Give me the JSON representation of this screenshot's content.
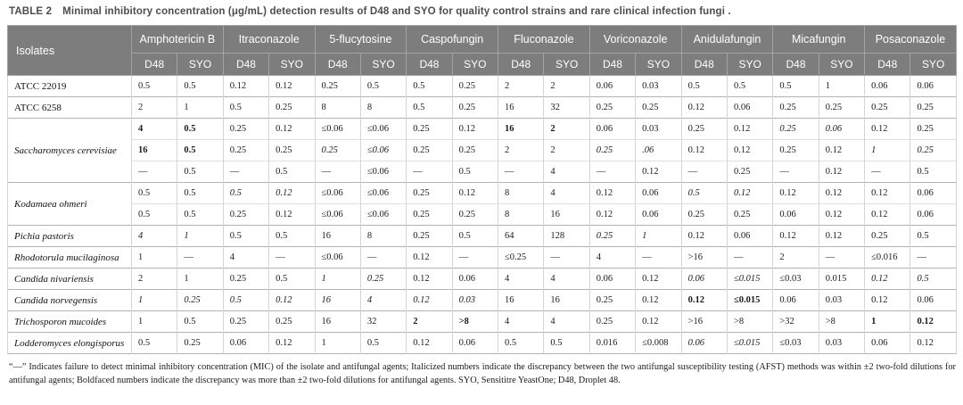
{
  "title": {
    "label": "TABLE 2",
    "text": "Minimal inhibitory concentration (μg/mL) detection results of D48 and SYO for quality control strains and rare clinical infection fungi ."
  },
  "table": {
    "isolates_header": "Isolates",
    "subcolumns": [
      "D48",
      "SYO"
    ],
    "drugs": [
      "Amphotericin B",
      "Itraconazole",
      "5-flucytosine",
      "Caspofungin",
      "Fluconazole",
      "Voriconazole",
      "Anidulafungin",
      "Micafungin",
      "Posaconazole"
    ],
    "groups": [
      {
        "isolate": "ATCC 22019",
        "italic": false,
        "rows": [
          {
            "values": [
              "0.5",
              "0.5",
              "0.12",
              "0.12",
              "0.25",
              "0.5",
              "0.5",
              "0.25",
              "2",
              "2",
              "0.06",
              "0.03",
              "0.5",
              "0.5",
              "0.5",
              "1",
              "0.06",
              "0.06"
            ],
            "styles": ".................."
          }
        ]
      },
      {
        "isolate": "ATCC 6258",
        "italic": false,
        "rows": [
          {
            "values": [
              "2",
              "1",
              "0.5",
              "0.25",
              "8",
              "8",
              "0.5",
              "0.25",
              "16",
              "32",
              "0.25",
              "0.25",
              "0.12",
              "0.06",
              "0.25",
              "0.25",
              "0.25",
              "0.25"
            ],
            "styles": ".................."
          }
        ]
      },
      {
        "isolate": "Saccharomyces cerevisiae",
        "italic": true,
        "rows": [
          {
            "values": [
              "4",
              "0.5",
              "0.25",
              "0.12",
              "≤0.06",
              "≤0.06",
              "0.25",
              "0.12",
              "16",
              "2",
              "0.06",
              "0.03",
              "0.25",
              "0.12",
              "0.25",
              "0.06",
              "0.12",
              "0.25"
            ],
            "styles": "bb......bb....ii.."
          },
          {
            "values": [
              "16",
              "0.5",
              "0.25",
              "0.25",
              "0.25",
              "≤0.06",
              "0.25",
              "0.25",
              "2",
              "2",
              "0.25",
              ".06",
              "0.12",
              "0.12",
              "0.25",
              "0.12",
              "1",
              "0.25"
            ],
            "styles": "bb..ii....ii....ii"
          },
          {
            "values": [
              "—",
              "0.5",
              "—",
              "0.5",
              "—",
              "≤0.06",
              "—",
              "0.5",
              "—",
              "4",
              "—",
              "0.12",
              "—",
              "0.25",
              "—",
              "0.12",
              "—",
              "0.5"
            ],
            "styles": ".................."
          }
        ]
      },
      {
        "isolate": "Kodamaea ohmeri",
        "italic": true,
        "rows": [
          {
            "values": [
              "0.5",
              "0.5",
              "0.5",
              "0.12",
              "≤0.06",
              "≤0.06",
              "0.25",
              "0.12",
              "8",
              "4",
              "0.12",
              "0.06",
              "0.5",
              "0.12",
              "0.12",
              "0.12",
              "0.12",
              "0.06"
            ],
            "styles": "..ii........ii...."
          },
          {
            "values": [
              "0.5",
              "0.5",
              "0.25",
              "0.12",
              "≤0.06",
              "≤0.06",
              "0.25",
              "0.25",
              "8",
              "16",
              "0.12",
              "0.06",
              "0.25",
              "0.25",
              "0.06",
              "0.12",
              "0.12",
              "0.06"
            ],
            "styles": ".................."
          }
        ]
      },
      {
        "isolate": "Pichia pastoris",
        "italic": true,
        "rows": [
          {
            "values": [
              "4",
              "1",
              "0.5",
              "0.5",
              "16",
              "8",
              "0.25",
              "0.5",
              "64",
              "128",
              "0.25",
              "1",
              "0.12",
              "0.06",
              "0.12",
              "0.12",
              "0.25",
              "0.5"
            ],
            "styles": "ii........ii......"
          }
        ]
      },
      {
        "isolate": "Rhodotorula mucilaginosa",
        "italic": true,
        "rows": [
          {
            "values": [
              "1",
              "—",
              "4",
              "—",
              "≤0.06",
              "—",
              "0.12",
              "—",
              "≤0.25",
              "—",
              "4",
              "—",
              ">16",
              "—",
              "2",
              "—",
              "≤0.016",
              "—"
            ],
            "styles": ".................."
          }
        ]
      },
      {
        "isolate": "Candida nivariensis",
        "italic": true,
        "rows": [
          {
            "values": [
              "2",
              "1",
              "0.25",
              "0.5",
              "1",
              "0.25",
              "0.12",
              "0.06",
              "4",
              "4",
              "0.06",
              "0.12",
              "0.06",
              "≤0.015",
              "≤0.03",
              "0.015",
              "0.12",
              "0.5"
            ],
            "styles": "....ii......ii..ii"
          }
        ]
      },
      {
        "isolate": "Candida norvegensis",
        "italic": true,
        "rows": [
          {
            "values": [
              "1",
              "0.25",
              "0.5",
              "0.12",
              "16",
              "4",
              "0.12",
              "0.03",
              "16",
              "16",
              "0.25",
              "0.12",
              "0.12",
              "≤0.015",
              "0.06",
              "0.03",
              "0.12",
              "0.06"
            ],
            "styles": "iiiiiiii....bb...."
          }
        ]
      },
      {
        "isolate": "Trichosporon mucoides",
        "italic": true,
        "rows": [
          {
            "values": [
              "1",
              "0.5",
              "0.25",
              "0.25",
              "16",
              "32",
              "2",
              ">8",
              "4",
              "4",
              "0.25",
              "0.12",
              ">16",
              ">8",
              ">32",
              ">8",
              "1",
              "0.12"
            ],
            "styles": "......bb........bb"
          }
        ]
      },
      {
        "isolate": "Lodderomyces elongisporus",
        "italic": true,
        "rows": [
          {
            "values": [
              "0.5",
              "0.25",
              "0.06",
              "0.12",
              "1",
              "0.5",
              "0.12",
              "0.06",
              "0.5",
              "0.5",
              "0.016",
              "≤0.008",
              "0.06",
              "≤0.015",
              "≤0.03",
              "0.03",
              "0.06",
              "0.12"
            ],
            "styles": "............ii...."
          }
        ]
      }
    ]
  },
  "footnote": "“—” Indicates failure to detect minimal inhibitory concentration (MIC) of the isolate and antifungal agents; Italicized numbers indicate the discrepancy between the two antifungal susceptibility testing (AFST) methods was within ±2 two-fold dilutions for antifungal agents; Boldfaced numbers indicate the discrepancy was more than ±2 two-fold dilutions for antifungal agents. SYO, Sensititre YeastOne; D48, Droplet 48."
}
